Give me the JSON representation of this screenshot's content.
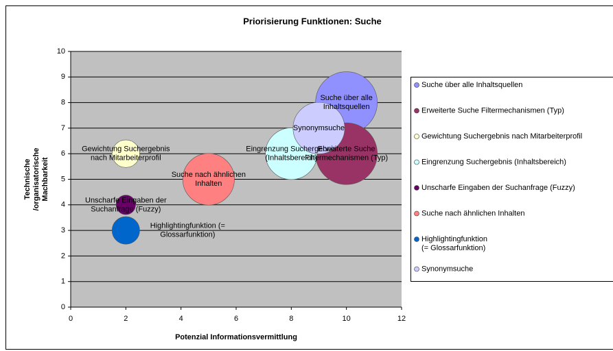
{
  "chart_data": {
    "type": "bubble",
    "title": "Priorisierung Funktionen: Suche",
    "x_label": "Potenzial Informationsvermittlung",
    "y_label": "Technische /organisatorische Machbarkeit",
    "xlim": [
      0,
      12
    ],
    "xticks": [
      0,
      2,
      4,
      6,
      8,
      10,
      12
    ],
    "ylim": [
      0,
      10
    ],
    "yticks": [
      0,
      1,
      2,
      3,
      4,
      5,
      6,
      7,
      8,
      9,
      10
    ],
    "grid": true,
    "legend": "right",
    "series": [
      {
        "name": "Suche über alle Inhaltsquellen",
        "color": "#9090ff",
        "x": [
          10
        ],
        "values": [
          8
        ],
        "sizes": [
          10
        ]
      },
      {
        "name": "Erweiterte Suche Filtermechanismen (Typ)",
        "color": "#993366",
        "x": [
          10
        ],
        "values": [
          6
        ],
        "sizes": [
          10
        ]
      },
      {
        "name": "Gewichtung Suchergebnis nach Mitarbeiterprofil",
        "color": "#ffffcc",
        "x": [
          2
        ],
        "values": [
          6
        ],
        "sizes": [
          2
        ]
      },
      {
        "name": "Eingrenzung Suchergebnis (Inhaltsbereich)",
        "color": "#ccffff",
        "x": [
          8
        ],
        "values": [
          6
        ],
        "sizes": [
          7
        ]
      },
      {
        "name": "Unscharfe Eingaben der Suchanfrage (Fuzzy)",
        "color": "#660066",
        "x": [
          2
        ],
        "values": [
          4
        ],
        "sizes": [
          1
        ]
      },
      {
        "name": "Suche nach ähnlichen Inhalten",
        "color": "#ff8080",
        "x": [
          5
        ],
        "values": [
          5
        ],
        "sizes": [
          7
        ]
      },
      {
        "name": "Highlightingfunktion (= Glossarfunktion)",
        "color": "#0066cc",
        "x": [
          2
        ],
        "values": [
          3
        ],
        "sizes": [
          2
        ]
      },
      {
        "name": "Synonymsuche",
        "color": "#ccccff",
        "x": [
          9
        ],
        "values": [
          7
        ],
        "sizes": [
          7
        ]
      }
    ]
  }
}
